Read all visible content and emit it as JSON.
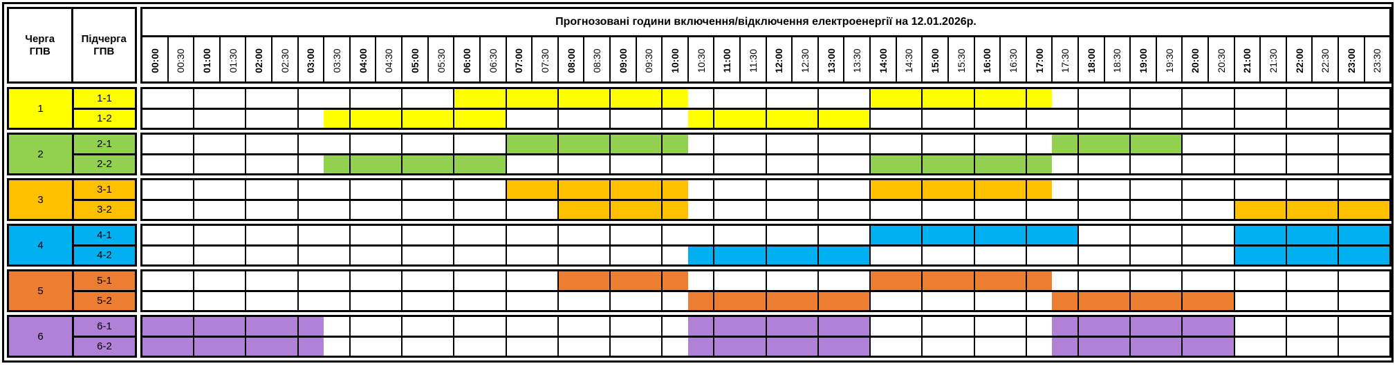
{
  "header": {
    "queue_label": "Черга\nГПВ",
    "subqueue_label": "Підчерга\nГПВ",
    "title": "Прогнозовані години включення/відключення електроенергії на 12.01.2026р."
  },
  "times": [
    "00:00",
    "00:30",
    "01:00",
    "01:30",
    "02:00",
    "02:30",
    "03:00",
    "03:30",
    "04:00",
    "04:30",
    "05:00",
    "05:30",
    "06:00",
    "06:30",
    "07:00",
    "07:30",
    "08:00",
    "08:30",
    "09:00",
    "09:30",
    "10:00",
    "10:30",
    "11:00",
    "11:30",
    "12:00",
    "12:30",
    "13:00",
    "13:30",
    "14:00",
    "14:30",
    "15:00",
    "15:30",
    "16:00",
    "16:30",
    "17:00",
    "17:30",
    "18:00",
    "18:30",
    "19:00",
    "19:30",
    "20:00",
    "20:30",
    "21:00",
    "21:30",
    "22:00",
    "22:30",
    "23:00",
    "23:30"
  ],
  "groups": [
    {
      "queue": "1",
      "color": "#FFFF00",
      "subqueues": [
        {
          "label": "1-1",
          "outages": [
            [
              12,
              20
            ],
            [
              28,
              34
            ]
          ]
        },
        {
          "label": "1-2",
          "outages": [
            [
              7,
              13
            ],
            [
              21,
              27
            ]
          ]
        }
      ]
    },
    {
      "queue": "2",
      "color": "#92D050",
      "subqueues": [
        {
          "label": "2-1",
          "outages": [
            [
              14,
              20
            ],
            [
              35,
              39
            ]
          ]
        },
        {
          "label": "2-2",
          "outages": [
            [
              7,
              13
            ],
            [
              28,
              34
            ]
          ]
        }
      ]
    },
    {
      "queue": "3",
      "color": "#FFC000",
      "subqueues": [
        {
          "label": "3-1",
          "outages": [
            [
              14,
              20
            ],
            [
              28,
              34
            ]
          ]
        },
        {
          "label": "3-2",
          "outages": [
            [
              16,
              20
            ],
            [
              42,
              47
            ]
          ]
        }
      ]
    },
    {
      "queue": "4",
      "color": "#00B0F0",
      "subqueues": [
        {
          "label": "4-1",
          "outages": [
            [
              28,
              35
            ],
            [
              42,
              47
            ]
          ]
        },
        {
          "label": "4-2",
          "outages": [
            [
              21,
              27
            ],
            [
              42,
              47
            ]
          ]
        }
      ]
    },
    {
      "queue": "5",
      "color": "#ED7D31",
      "subqueues": [
        {
          "label": "5-1",
          "outages": [
            [
              16,
              20
            ],
            [
              28,
              34
            ]
          ]
        },
        {
          "label": "5-2",
          "outages": [
            [
              21,
              27
            ],
            [
              35,
              41
            ]
          ]
        }
      ]
    },
    {
      "queue": "6",
      "color": "#B180D7",
      "subqueues": [
        {
          "label": "6-1",
          "outages": [
            [
              0,
              6
            ],
            [
              21,
              27
            ],
            [
              35,
              41
            ]
          ]
        },
        {
          "label": "6-2",
          "outages": [
            [
              0,
              6
            ],
            [
              21,
              27
            ],
            [
              35,
              41
            ]
          ]
        }
      ]
    }
  ]
}
